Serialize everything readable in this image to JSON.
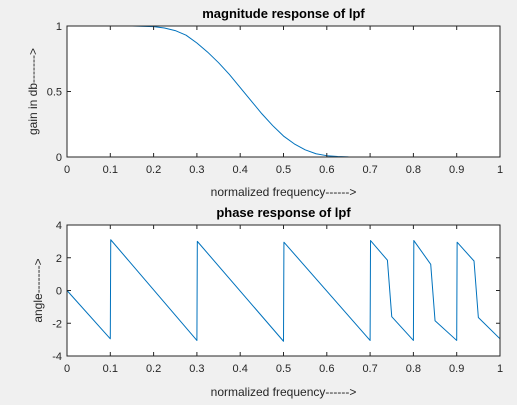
{
  "chart_data": [
    {
      "type": "line",
      "title": "magnitude response of lpf",
      "xlabel": "normalized frequency------>",
      "ylabel": "gain in db------->",
      "xlim": [
        0,
        1
      ],
      "ylim": [
        0,
        1
      ],
      "xticks": [
        "0",
        "0.1",
        "0.2",
        "0.3",
        "0.4",
        "0.5",
        "0.6",
        "0.7",
        "0.8",
        "0.9",
        "1"
      ],
      "xtick_values": [
        0,
        0.1,
        0.2,
        0.3,
        0.4,
        0.5,
        0.6,
        0.7,
        0.8,
        0.9,
        1
      ],
      "yticks": [
        "0",
        "0.5",
        "1"
      ],
      "ytick_values": [
        0,
        0.5,
        1
      ],
      "grid": false,
      "color": "#0072bd",
      "series": [
        {
          "x": [
            0,
            0.1,
            0.15,
            0.2,
            0.225,
            0.25,
            0.275,
            0.3,
            0.325,
            0.35,
            0.375,
            0.4,
            0.425,
            0.45,
            0.475,
            0.5,
            0.525,
            0.55,
            0.575,
            0.6,
            0.625,
            0.65,
            0.7,
            0.8,
            0.9,
            1
          ],
          "y": [
            1,
            1,
            1,
            0.995,
            0.985,
            0.965,
            0.93,
            0.87,
            0.8,
            0.72,
            0.63,
            0.53,
            0.43,
            0.33,
            0.24,
            0.16,
            0.1,
            0.055,
            0.025,
            0.01,
            0.004,
            0.001,
            0,
            0,
            0,
            0
          ]
        }
      ]
    },
    {
      "type": "line",
      "title": "phase response of lpf",
      "xlabel": "normalized frequency------>",
      "ylabel": "angle------->",
      "xlim": [
        0,
        1
      ],
      "ylim": [
        -4,
        4
      ],
      "xticks": [
        "0",
        "0.1",
        "0.2",
        "0.3",
        "0.4",
        "0.5",
        "0.6",
        "0.7",
        "0.8",
        "0.9",
        "1"
      ],
      "xtick_values": [
        0,
        0.1,
        0.2,
        0.3,
        0.4,
        0.5,
        0.6,
        0.7,
        0.8,
        0.9,
        1
      ],
      "yticks": [
        "-4",
        "-2",
        "0",
        "2",
        "4"
      ],
      "ytick_values": [
        -4,
        -2,
        0,
        2,
        4
      ],
      "grid": false,
      "color": "#0072bd",
      "series": [
        {
          "x": [
            0,
            0.1,
            0.101,
            0.3,
            0.301,
            0.5,
            0.501,
            0.7,
            0.701,
            0.74,
            0.75,
            0.8,
            0.801,
            0.84,
            0.85,
            0.9,
            0.901,
            0.94,
            0.95,
            1
          ],
          "y": [
            0,
            -2.95,
            3.1,
            -3.05,
            3.0,
            -3.1,
            2.95,
            -3.05,
            3.05,
            1.85,
            -1.6,
            -3.05,
            3.05,
            1.6,
            -1.85,
            -3.05,
            2.95,
            1.8,
            -1.65,
            -2.95
          ]
        }
      ]
    }
  ]
}
